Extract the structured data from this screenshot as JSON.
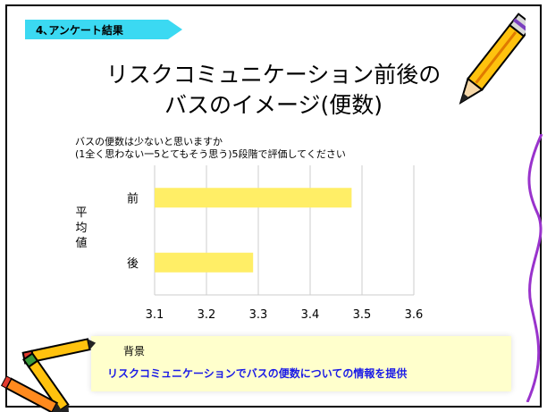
{
  "section_tag": "4､アンケート結果",
  "title_line1": "リスクコミュニケーション前後の",
  "title_line2": "バスのイメージ(便数)",
  "question_line1": "バスの便数は少ないと思いますか",
  "question_line2": "(1全く思わない一5とてもそう思う)5段階で評価してください",
  "chart_data": {
    "type": "bar",
    "orientation": "horizontal",
    "categories": [
      "前",
      "後"
    ],
    "values": [
      3.48,
      3.29
    ],
    "ylabel": "平均値",
    "xlim": [
      3.1,
      3.6
    ],
    "xticks": [
      "3.1",
      "3.2",
      "3.3",
      "3.4",
      "3.5",
      "3.6"
    ],
    "grid": true,
    "bar_color": "#ffee66"
  },
  "footer": {
    "label": "背景",
    "text": "リスクコミュニケーションでバスの便数についての情報を提供"
  },
  "colors": {
    "tag": "#3bd9f2",
    "footer_bg": "#ffffcc",
    "footer_text": "#1a1ae6"
  }
}
